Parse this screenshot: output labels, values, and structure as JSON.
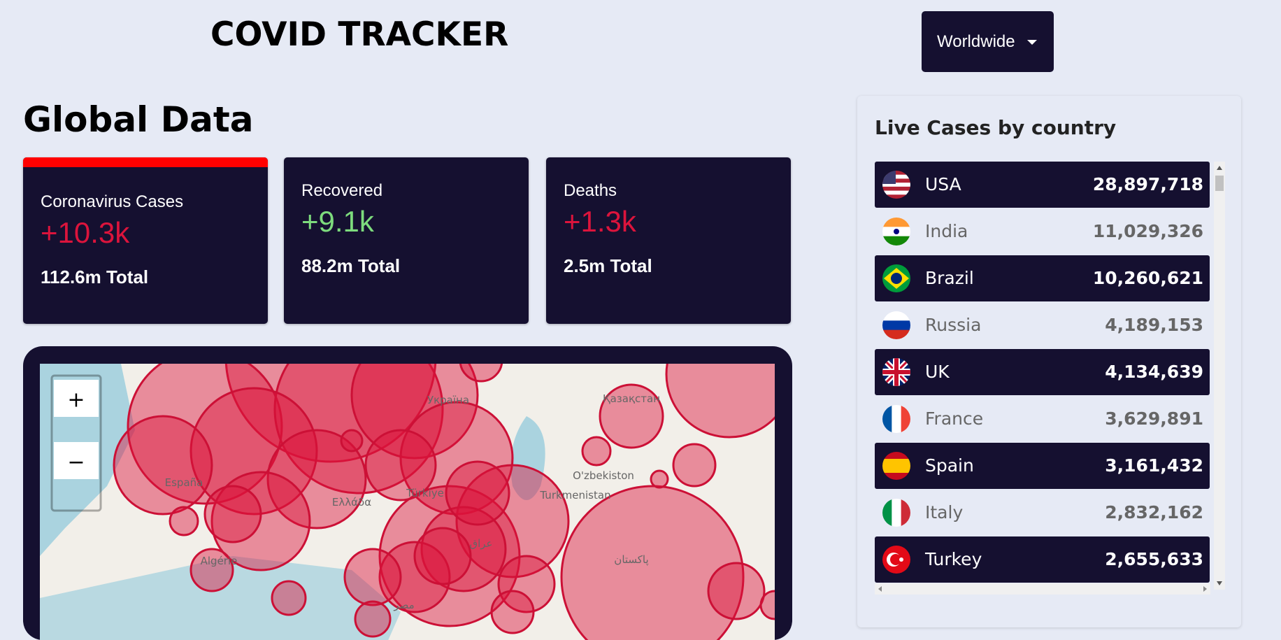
{
  "header": {
    "title": "COVID TRACKER",
    "dropdown": "Worldwide"
  },
  "global": {
    "heading": "Global Data",
    "cards": [
      {
        "label": "Coronavirus Cases",
        "today": "+10.3k",
        "total": "112.6m Total"
      },
      {
        "label": "Recovered",
        "today": "+9.1k",
        "total": "88.2m Total"
      },
      {
        "label": "Deaths",
        "today": "+1.3k",
        "total": "2.5m Total"
      }
    ]
  },
  "map": {
    "zoom_in": "+",
    "zoom_out": "−",
    "labels": [
      "Қазақстан",
      "O'zbekiston",
      "Türkiye",
      "Turkmenistan",
      "Україна",
      "España",
      "Algérie",
      "Ελλάδα",
      "پاکستان",
      "عراق",
      "مصر"
    ]
  },
  "live": {
    "title": "Live Cases by country",
    "rows": [
      {
        "country": "USA",
        "cases": "28,897,718"
      },
      {
        "country": "India",
        "cases": "11,029,326"
      },
      {
        "country": "Brazil",
        "cases": "10,260,621"
      },
      {
        "country": "Russia",
        "cases": "4,189,153"
      },
      {
        "country": "UK",
        "cases": "4,134,639"
      },
      {
        "country": "France",
        "cases": "3,629,891"
      },
      {
        "country": "Spain",
        "cases": "3,161,432"
      },
      {
        "country": "Italy",
        "cases": "2,832,162"
      },
      {
        "country": "Turkey",
        "cases": "2,655,633"
      }
    ]
  }
}
